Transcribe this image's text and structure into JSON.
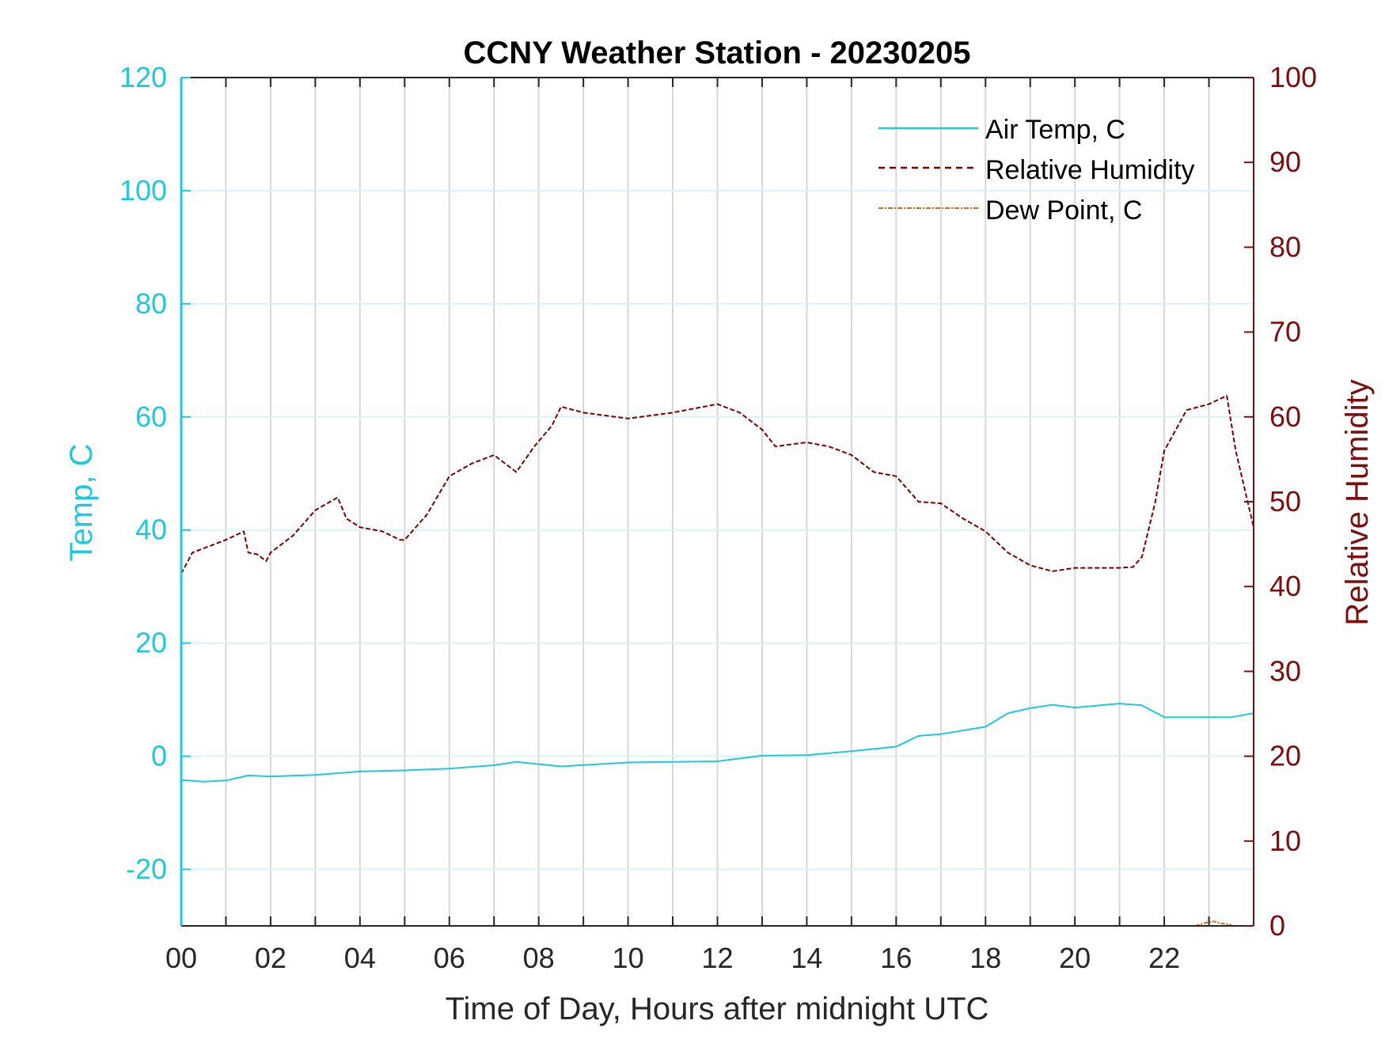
{
  "chart_data": {
    "type": "line",
    "title": "CCNY Weather Station - 20230205",
    "xlabel": "Time of Day, Hours after midnight UTC",
    "ylabel_left": "Temp, C",
    "ylabel_right": "Relative Humidity",
    "xlim": [
      0,
      24
    ],
    "ylim_left": [
      -30,
      120
    ],
    "ylim_right": [
      0,
      100
    ],
    "x_ticks": [
      0,
      2,
      4,
      6,
      8,
      10,
      12,
      14,
      16,
      18,
      20,
      22
    ],
    "x_tick_labels": [
      "00",
      "02",
      "04",
      "06",
      "08",
      "10",
      "12",
      "14",
      "16",
      "18",
      "20",
      "22"
    ],
    "y_left_ticks": [
      -20,
      0,
      20,
      40,
      60,
      80,
      100,
      120
    ],
    "y_left_tick_labels": [
      "-20",
      "0",
      "20",
      "40",
      "60",
      "80",
      "100",
      "120"
    ],
    "y_right_ticks": [
      0,
      10,
      20,
      30,
      40,
      50,
      60,
      70,
      80,
      90,
      100
    ],
    "y_right_tick_labels": [
      "0",
      "10",
      "20",
      "30",
      "40",
      "50",
      "60",
      "70",
      "80",
      "90",
      "100"
    ],
    "grid": {
      "vertical_every_hours": 1,
      "horizontal": true
    },
    "legend_position": "top-right",
    "colors": {
      "temp": "#22c7d9",
      "rh": "#7a0000",
      "dew": "#e0661a",
      "axis_left": "#22c7d9",
      "axis_right": "#7a0f0f"
    },
    "series": [
      {
        "name": "Air Temp, C",
        "axis": "left",
        "style": "solid",
        "x": [
          0,
          0.5,
          1,
          1.5,
          2,
          3,
          4,
          5,
          6,
          7,
          7.5,
          8.5,
          10,
          12,
          13,
          14,
          15,
          16,
          16.5,
          17,
          18,
          18.5,
          19,
          19.5,
          20,
          21,
          21.5,
          22,
          23,
          23.5,
          24
        ],
        "y": [
          -4.2,
          -4.5,
          -4.3,
          -3.4,
          -3.6,
          -3.3,
          -2.7,
          -2.5,
          -2.2,
          -1.6,
          -1.0,
          -1.8,
          -1.1,
          -0.9,
          0.1,
          0.2,
          0.9,
          1.7,
          3.6,
          3.9,
          5.2,
          7.6,
          8.5,
          9.1,
          8.6,
          9.3,
          9.0,
          6.9,
          6.9,
          6.9,
          7.6
        ]
      },
      {
        "name": "Relative Humidity",
        "axis": "right",
        "style": "dashed",
        "x": [
          0,
          0.25,
          0.5,
          1,
          1.4,
          1.5,
          1.7,
          1.9,
          2,
          2.5,
          3,
          3.5,
          3.7,
          4,
          4.5,
          4.9,
          5,
          5.5,
          6,
          6.5,
          7,
          7.5,
          7.9,
          8.3,
          8.5,
          9,
          10,
          11,
          12,
          12.5,
          13,
          13.3,
          13.7,
          14,
          14.5,
          15,
          15.5,
          16,
          16.5,
          17,
          17.5,
          18,
          18.5,
          19,
          19.5,
          20,
          20.5,
          21,
          21.3,
          21.5,
          21.8,
          22,
          22.5,
          23,
          23.4,
          23.6,
          24
        ],
        "y": [
          41.5,
          44,
          44.5,
          45.5,
          46.5,
          44,
          43.8,
          43,
          44,
          46,
          49,
          50.5,
          48,
          47,
          46.5,
          45.5,
          45.5,
          48.5,
          53,
          54.5,
          55.5,
          53.5,
          56.5,
          59,
          61.2,
          60.5,
          59.8,
          60.5,
          61.5,
          60.5,
          58.5,
          56.5,
          56.8,
          57,
          56.5,
          55.5,
          53.5,
          53,
          50,
          49.8,
          48,
          46.5,
          44,
          42.5,
          41.8,
          42.2,
          42.2,
          42.2,
          42.3,
          43.5,
          50,
          56,
          60.8,
          61.5,
          62.5,
          56,
          47
        ]
      },
      {
        "name": "Dew Point, C",
        "axis": "left",
        "style": "dash-dot",
        "x": [
          22.7,
          22.9,
          23.1,
          23.3,
          23.5
        ],
        "y": [
          -30,
          -29.5,
          -29.2,
          -29.6,
          -29.8
        ]
      }
    ]
  }
}
